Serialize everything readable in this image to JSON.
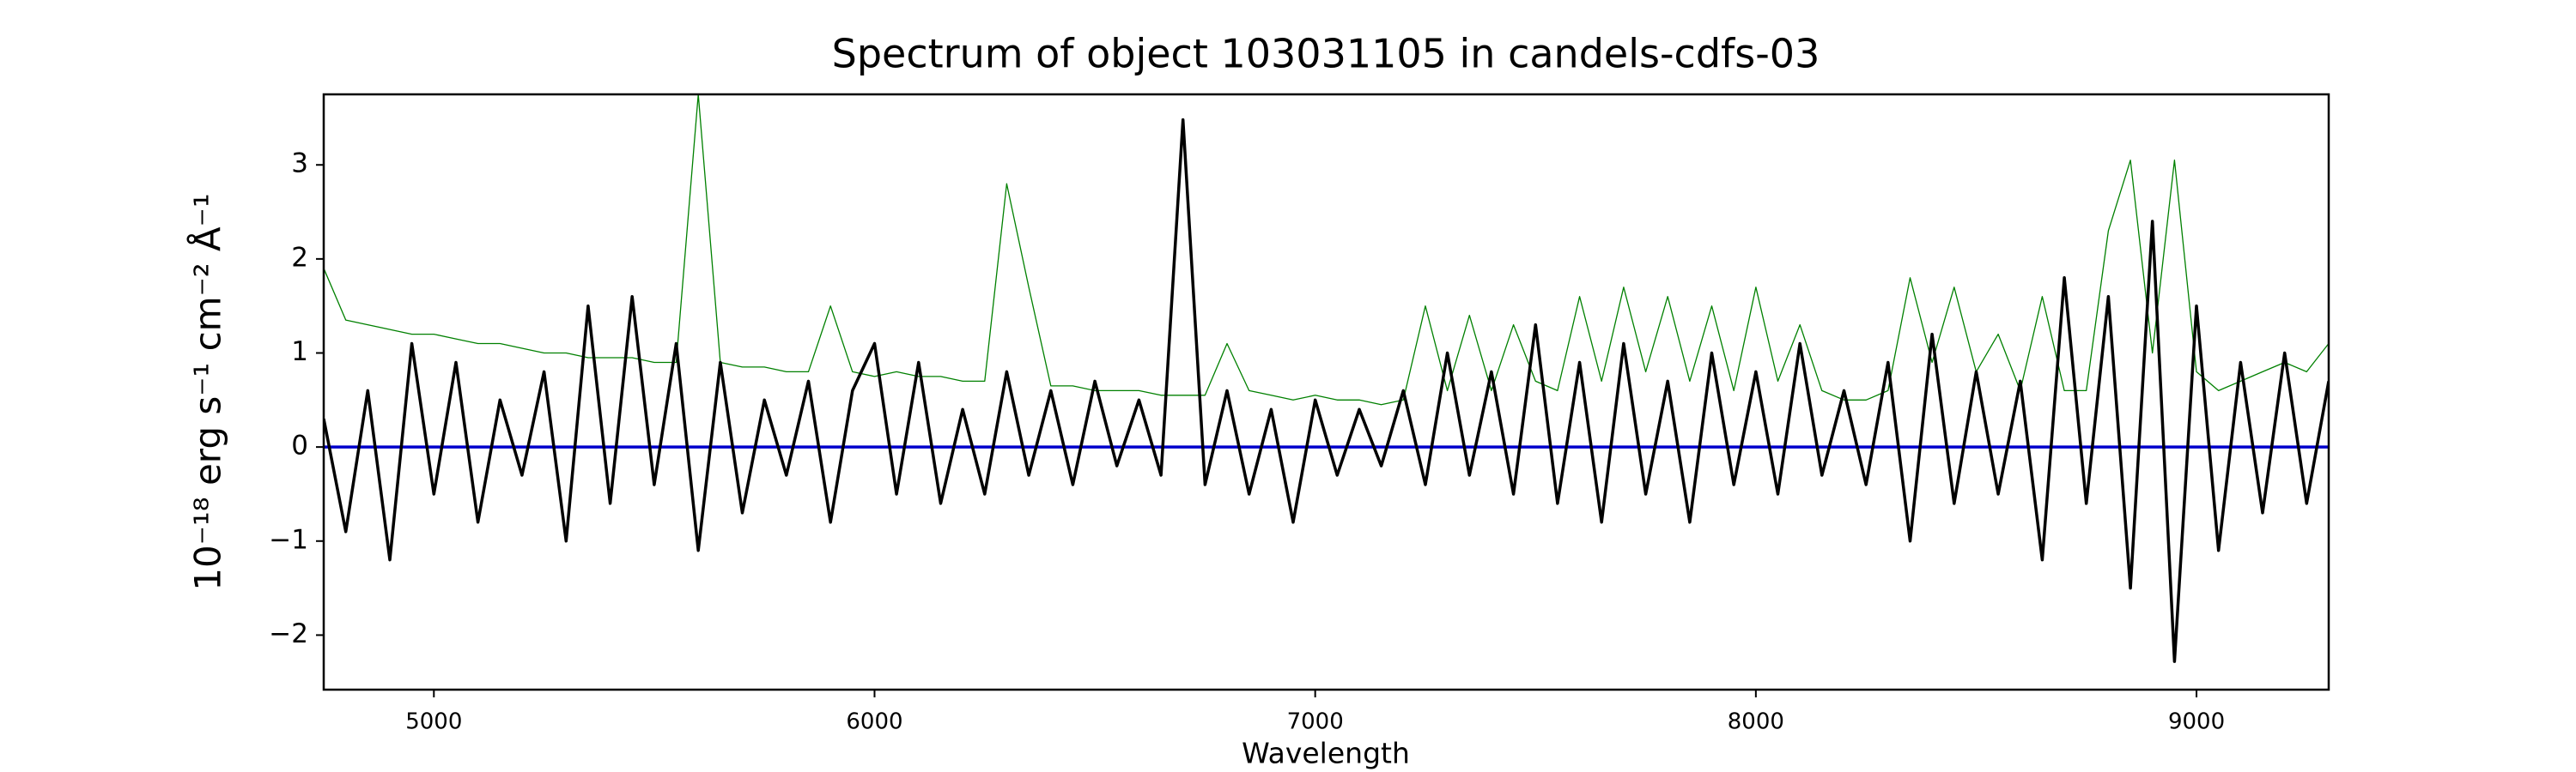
{
  "chart_data": {
    "type": "line",
    "title": "Spectrum of object 103031105 in candels-cdfs-03",
    "xlabel": "Wavelength",
    "ylabel": "10⁻¹⁸ erg s⁻¹ cm⁻² Å⁻¹",
    "xlim": [
      4750,
      9300
    ],
    "ylim": [
      -2.58,
      3.75
    ],
    "xticks": [
      5000,
      6000,
      7000,
      8000,
      9000
    ],
    "yticks": [
      {
        "value": -2,
        "label": "−2"
      },
      {
        "value": -1,
        "label": "−1"
      },
      0,
      1,
      2,
      3
    ],
    "grid": false,
    "series": [
      {
        "color": "#008000",
        "width": 1.3,
        "x": [
          4750,
          4800,
          4850,
          4900,
          4950,
          5000,
          5050,
          5100,
          5150,
          5200,
          5250,
          5300,
          5350,
          5400,
          5450,
          5500,
          5550,
          5600,
          5650,
          5700,
          5750,
          5800,
          5850,
          5900,
          5950,
          6000,
          6050,
          6100,
          6150,
          6200,
          6250,
          6300,
          6350,
          6400,
          6450,
          6500,
          6550,
          6600,
          6650,
          6700,
          6750,
          6800,
          6850,
          6900,
          6950,
          7000,
          7050,
          7100,
          7150,
          7200,
          7250,
          7300,
          7350,
          7400,
          7450,
          7500,
          7550,
          7600,
          7650,
          7700,
          7750,
          7800,
          7850,
          7900,
          7950,
          8000,
          8050,
          8100,
          8150,
          8200,
          8250,
          8300,
          8350,
          8400,
          8450,
          8500,
          8550,
          8600,
          8650,
          8700,
          8750,
          8800,
          8850,
          8900,
          8950,
          9000,
          9050,
          9100,
          9150,
          9200,
          9250,
          9300
        ],
        "values": [
          1.9,
          1.35,
          1.3,
          1.25,
          1.2,
          1.2,
          1.15,
          1.1,
          1.1,
          1.05,
          1.0,
          1.0,
          0.95,
          0.95,
          0.95,
          0.9,
          0.9,
          3.75,
          0.9,
          0.85,
          0.85,
          0.8,
          0.8,
          1.5,
          0.8,
          0.75,
          0.8,
          0.75,
          0.75,
          0.7,
          0.7,
          2.8,
          1.7,
          0.65,
          0.65,
          0.6,
          0.6,
          0.6,
          0.55,
          0.55,
          0.55,
          1.1,
          0.6,
          0.55,
          0.5,
          0.55,
          0.5,
          0.5,
          0.45,
          0.5,
          1.5,
          0.6,
          1.4,
          0.6,
          1.3,
          0.7,
          0.6,
          1.6,
          0.7,
          1.7,
          0.8,
          1.6,
          0.7,
          1.5,
          0.6,
          1.7,
          0.7,
          1.3,
          0.6,
          0.5,
          0.5,
          0.6,
          1.8,
          0.9,
          1.7,
          0.8,
          1.2,
          0.6,
          1.6,
          0.6,
          0.6,
          2.3,
          3.05,
          1.0,
          3.05,
          0.8,
          0.6,
          0.7,
          0.8,
          0.9,
          0.8,
          1.1
        ]
      },
      {
        "color": "#0000cc",
        "width": 3.5,
        "x": [
          4750,
          9300
        ],
        "values": [
          0,
          0
        ]
      },
      {
        "color": "#000000",
        "width": 3.5,
        "x": [
          4750,
          4800,
          4850,
          4900,
          4950,
          5000,
          5050,
          5100,
          5150,
          5200,
          5250,
          5300,
          5350,
          5400,
          5450,
          5500,
          5550,
          5600,
          5650,
          5700,
          5750,
          5800,
          5850,
          5900,
          5950,
          6000,
          6050,
          6100,
          6150,
          6200,
          6250,
          6300,
          6350,
          6400,
          6450,
          6500,
          6550,
          6600,
          6650,
          6700,
          6750,
          6800,
          6850,
          6900,
          6950,
          7000,
          7050,
          7100,
          7150,
          7200,
          7250,
          7300,
          7350,
          7400,
          7450,
          7500,
          7550,
          7600,
          7650,
          7700,
          7750,
          7800,
          7850,
          7900,
          7950,
          8000,
          8050,
          8100,
          8150,
          8200,
          8250,
          8300,
          8350,
          8400,
          8450,
          8500,
          8550,
          8600,
          8650,
          8700,
          8750,
          8800,
          8850,
          8900,
          8950,
          9000,
          9050,
          9100,
          9150,
          9200,
          9250,
          9300
        ],
        "values": [
          0.3,
          -0.9,
          0.6,
          -1.2,
          1.1,
          -0.5,
          0.9,
          -0.8,
          0.5,
          -0.3,
          0.8,
          -1.0,
          1.5,
          -0.6,
          1.6,
          -0.4,
          1.1,
          -1.1,
          0.9,
          -0.7,
          0.5,
          -0.3,
          0.7,
          -0.8,
          0.6,
          1.1,
          -0.5,
          0.9,
          -0.6,
          0.4,
          -0.5,
          0.8,
          -0.3,
          0.6,
          -0.4,
          0.7,
          -0.2,
          0.5,
          -0.3,
          3.48,
          -0.4,
          0.6,
          -0.5,
          0.4,
          -0.8,
          0.5,
          -0.3,
          0.4,
          -0.2,
          0.6,
          -0.4,
          1.0,
          -0.3,
          0.8,
          -0.5,
          1.3,
          -0.6,
          0.9,
          -0.8,
          1.1,
          -0.5,
          0.7,
          -0.8,
          1.0,
          -0.4,
          0.8,
          -0.5,
          1.1,
          -0.3,
          0.6,
          -0.4,
          0.9,
          -1.0,
          1.2,
          -0.6,
          0.8,
          -0.5,
          0.7,
          -1.2,
          1.8,
          -0.6,
          1.6,
          -1.5,
          2.4,
          -2.28,
          1.5,
          -1.1,
          0.9,
          -0.7,
          1.0,
          -0.6,
          0.7
        ]
      }
    ]
  }
}
